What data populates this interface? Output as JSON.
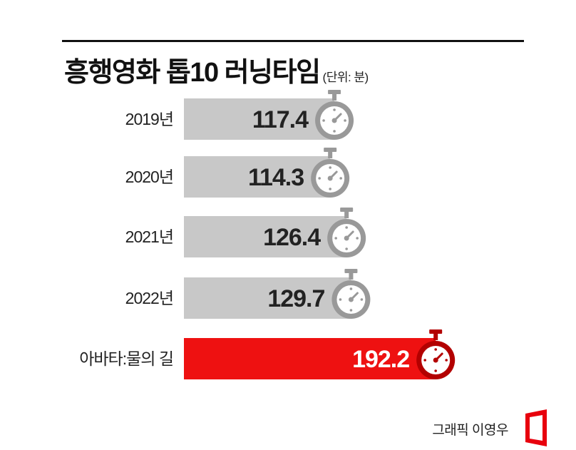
{
  "title": "흥행영화 톱10 러닝타임",
  "unit": "(단위: 분)",
  "credit": "그래픽 이영우",
  "colors": {
    "bar_default": "#c8c8c8",
    "bar_highlight": "#ee1111",
    "timer_default": "#999999",
    "timer_highlight": "#b30000",
    "text_default": "#222222",
    "text_highlight": "#ffffff",
    "logo": "#e8000d"
  },
  "icons": {
    "timer": "stopwatch-icon",
    "logo": "brand-logo"
  },
  "chart_data": {
    "type": "bar",
    "orientation": "horizontal",
    "categories": [
      "2019년",
      "2020년",
      "2021년",
      "2022년",
      "아바타:물의 길"
    ],
    "values": [
      117.4,
      114.3,
      126.4,
      129.7,
      192.2
    ],
    "highlight_index": 4,
    "title": "흥행영화 톱10 러닝타임",
    "unit": "(단위: 분)",
    "grid": false,
    "legend": "none"
  }
}
